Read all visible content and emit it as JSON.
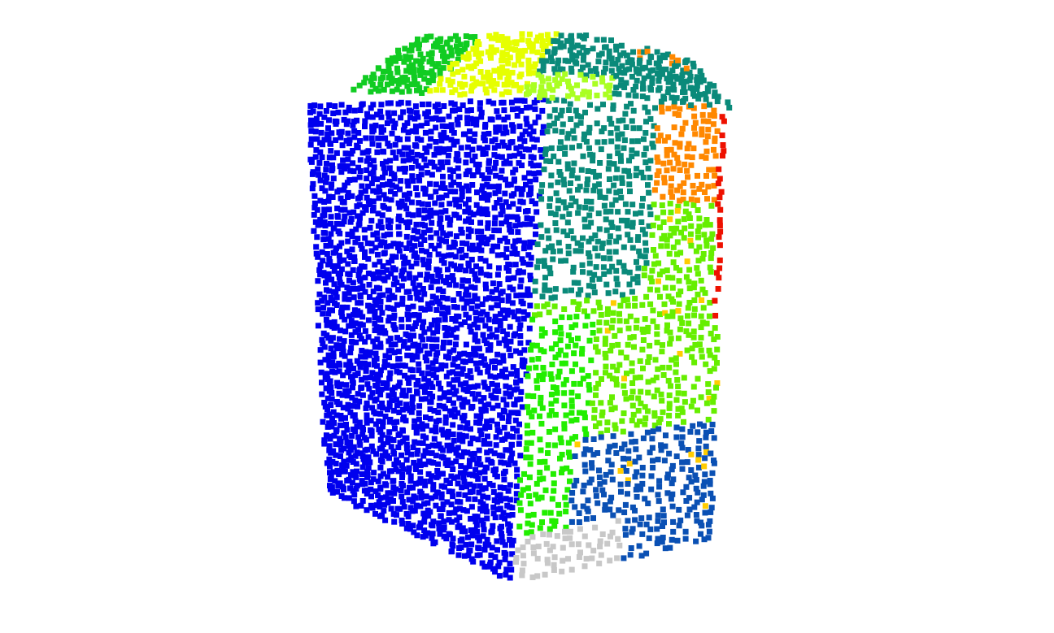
{
  "scene": {
    "kind": "segmented-point-cloud",
    "background": "#ffffff",
    "marker": "square",
    "segments": [
      {
        "id": "left-face",
        "color": "#0000ee"
      },
      {
        "id": "top-left",
        "color": "#11cc22"
      },
      {
        "id": "top-middle",
        "color": "#e6ff00"
      },
      {
        "id": "top-right",
        "color": "#0a8a7a"
      },
      {
        "id": "top-rim",
        "color": "#aaff22"
      },
      {
        "id": "right-upper-teal",
        "color": "#0a8a7a"
      },
      {
        "id": "right-orange",
        "color": "#ff8800"
      },
      {
        "id": "right-red-edge",
        "color": "#ee1100"
      },
      {
        "id": "right-lime",
        "color": "#66ee00"
      },
      {
        "id": "right-green",
        "color": "#22ee00"
      },
      {
        "id": "right-lower-blue",
        "color": "#0a50b4"
      },
      {
        "id": "yellow-accents",
        "color": "#ffcc00"
      },
      {
        "id": "bottom-grey",
        "color": "#c8c8c8"
      }
    ]
  }
}
